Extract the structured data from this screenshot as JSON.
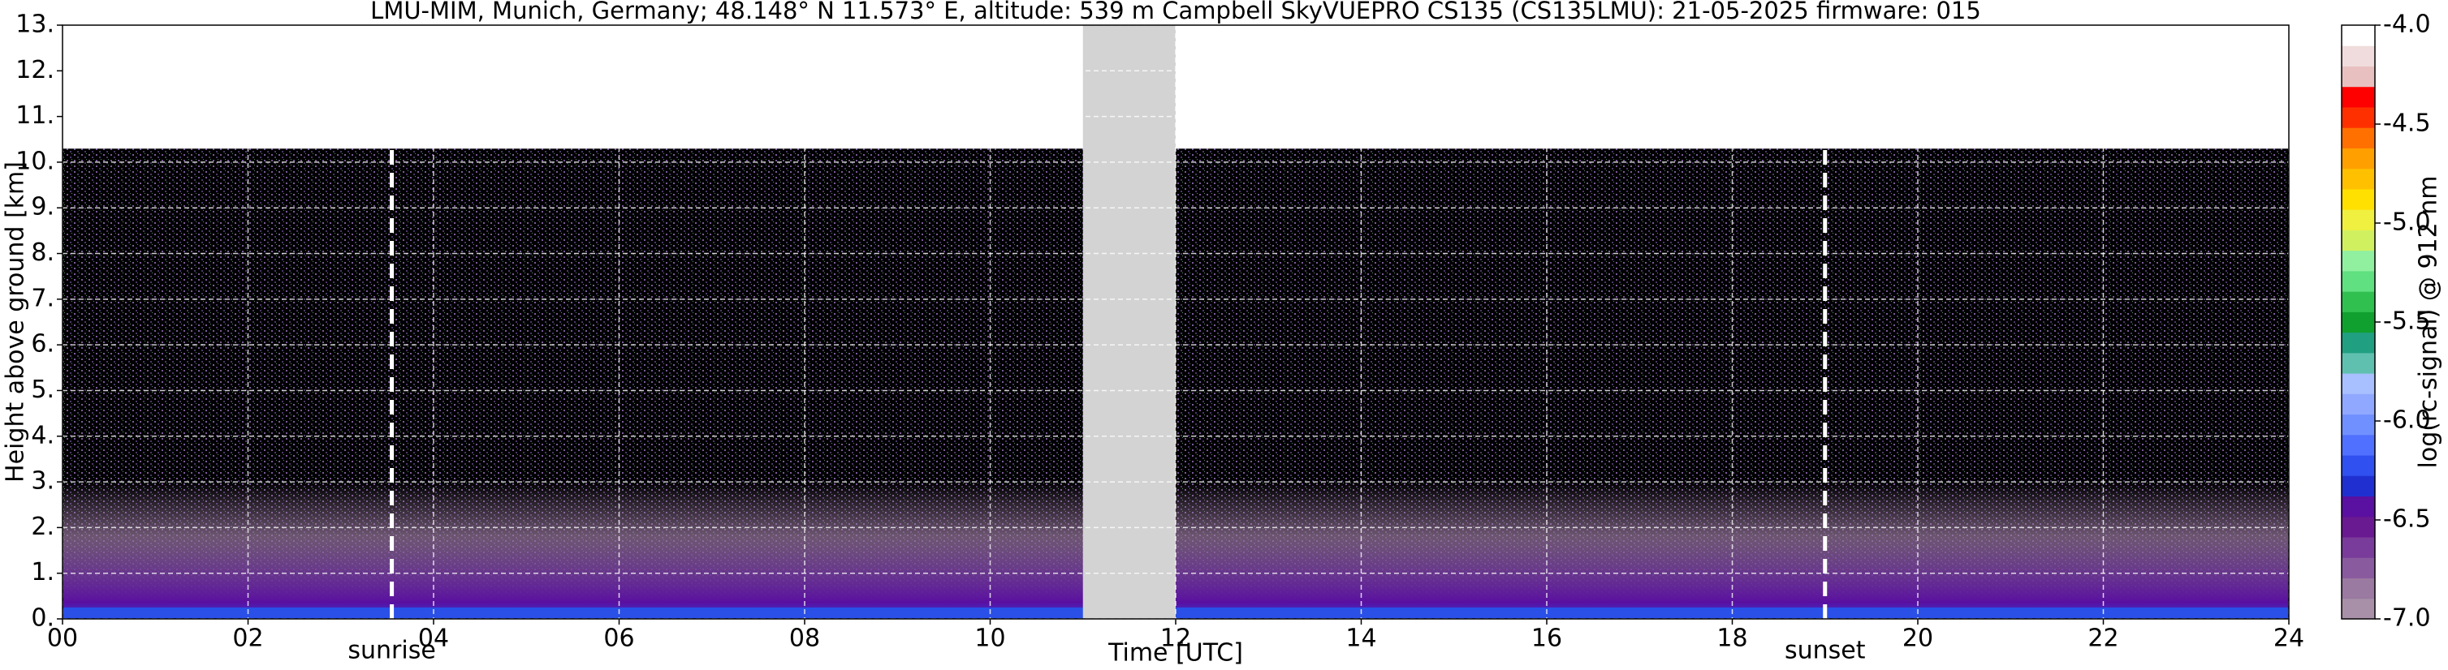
{
  "chart_data": {
    "type": "heatmap",
    "title": "LMU-MIM, Munich, Germany; 48.148° N 11.573° E, altitude: 539 m    Campbell SkyVUEPRO CS135 (CS135LMU): 21-05-2025    firmware: 015",
    "x_label": "Time [UTC]",
    "y_label": "Height above ground [km]",
    "xlim": [
      0,
      24
    ],
    "xticks": [
      {
        "value": 0,
        "label": "00"
      },
      {
        "value": 2,
        "label": "02"
      },
      {
        "value": 4,
        "label": "04"
      },
      {
        "value": 6,
        "label": "06"
      },
      {
        "value": 8,
        "label": "08"
      },
      10,
      12,
      14,
      16,
      18,
      20,
      22,
      24
    ],
    "ylim": [
      0,
      13
    ],
    "yticks": [
      {
        "value": 0,
        "label": "0."
      },
      {
        "value": 1,
        "label": "1."
      },
      {
        "value": 2,
        "label": "2."
      },
      {
        "value": 3,
        "label": "3."
      },
      {
        "value": 4,
        "label": "4."
      },
      {
        "value": 5,
        "label": "5."
      },
      {
        "value": 6,
        "label": "6."
      },
      {
        "value": 7,
        "label": "7."
      },
      {
        "value": 8,
        "label": "8."
      },
      {
        "value": 9,
        "label": "9."
      },
      {
        "value": 10,
        "label": "10."
      },
      {
        "value": 11,
        "label": "11."
      },
      {
        "value": 12,
        "label": "12."
      },
      {
        "value": 13,
        "label": "13."
      }
    ],
    "grid": true,
    "missing_data": [
      11,
      12
    ],
    "annotations": [
      {
        "text": "sunrise",
        "x": 3.55
      },
      {
        "text": "sunset",
        "x": 19.0
      }
    ],
    "colorbar": {
      "label": "log(rc-signal) @ 912 nm",
      "lim": [
        -7,
        -4
      ],
      "ticks": [
        {
          "value": -4,
          "label": "-4.0"
        },
        {
          "value": -4.5,
          "label": "-4.5"
        },
        {
          "value": -5,
          "label": "-5.0"
        },
        {
          "value": -5.5,
          "label": "-5.5"
        },
        {
          "value": -6,
          "label": "-6.0"
        },
        {
          "value": -6.5,
          "label": "-6.5"
        },
        {
          "value": -7,
          "label": "-7.0"
        }
      ],
      "colors": [
        "#a890a8",
        "#9a7aa0",
        "#8a5a9e",
        "#7a3c9a",
        "#6a1a90",
        "#5a10a0",
        "#2030d0",
        "#3050f0",
        "#5070ff",
        "#7090ff",
        "#90a8ff",
        "#a8c0ff",
        "#60c0b0",
        "#20a080",
        "#10a030",
        "#30c050",
        "#60e080",
        "#90f0a0",
        "#d0f060",
        "#f0f040",
        "#ffe000",
        "#ffc000",
        "#ffa000",
        "#ff7000",
        "#ff3000",
        "#ff0000",
        "#e8c0c0",
        "#f0dcdc",
        "#ffffff"
      ]
    }
  }
}
